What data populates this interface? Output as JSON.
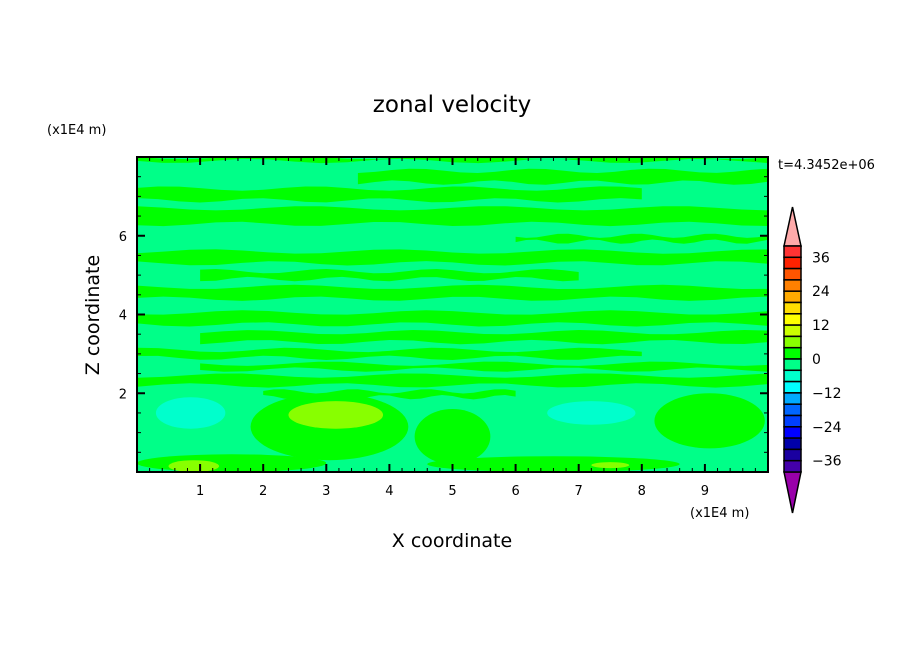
{
  "chart_data": {
    "type": "heatmap",
    "subtype": "filled-contour",
    "title": "zonal velocity",
    "xlabel": "X coordinate",
    "ylabel": "Z coordinate",
    "x_unit_label": "(x1E4 m)",
    "y_unit_label": "(x1E4 m)",
    "time_label": "t=4.3452e+06",
    "xlim": [
      0,
      10
    ],
    "ylim": [
      0,
      8
    ],
    "x_ticks": [
      "1",
      "2",
      "3",
      "4",
      "5",
      "6",
      "7",
      "8",
      "9"
    ],
    "y_ticks": [
      "2",
      "4",
      "6"
    ],
    "grid": false,
    "background_level": [
      -4,
      0
    ],
    "colorbar": {
      "levels": [
        40,
        36,
        32,
        28,
        24,
        20,
        16,
        12,
        8,
        4,
        0,
        -4,
        -8,
        -12,
        -16,
        -20,
        -24,
        -28,
        -32,
        -36,
        -40
      ],
      "tick_labels": [
        "36",
        "24",
        "12",
        "0",
        "-12",
        "-24",
        "-36"
      ],
      "colors": [
        "#ff3333",
        "#ff2200",
        "#ff5500",
        "#ff8000",
        "#ffaa00",
        "#ffdd00",
        "#ffff00",
        "#ccff00",
        "#88ff00",
        "#00ff00",
        "#00ff88",
        "#00ffcc",
        "#00ffff",
        "#00aaff",
        "#0066ff",
        "#0040ff",
        "#0000ff",
        "#0000aa",
        "#1a00a0",
        "#4400aa"
      ],
      "over_color": "#ffaaaa",
      "under_color": "#9900aa",
      "extend": "both"
    },
    "regions": [
      {
        "level": [
          0,
          4
        ],
        "x": [
          0,
          10
        ],
        "z": [
          7.9,
          8.0
        ]
      },
      {
        "level": [
          0,
          4
        ],
        "x": [
          3.5,
          10
        ],
        "z": [
          7.35,
          7.65
        ]
      },
      {
        "level": [
          0,
          4
        ],
        "x": [
          0,
          8
        ],
        "z": [
          6.9,
          7.2
        ]
      },
      {
        "level": [
          0,
          4
        ],
        "x": [
          0,
          10
        ],
        "z": [
          6.3,
          6.7
        ]
      },
      {
        "level": [
          0,
          4
        ],
        "x": [
          6,
          10
        ],
        "z": [
          5.85,
          6.0
        ]
      },
      {
        "level": [
          0,
          4
        ],
        "x": [
          0,
          10
        ],
        "z": [
          5.3,
          5.6
        ]
      },
      {
        "level": [
          0,
          4
        ],
        "x": [
          1,
          7
        ],
        "z": [
          4.9,
          5.1
        ]
      },
      {
        "level": [
          0,
          4
        ],
        "x": [
          0,
          10
        ],
        "z": [
          4.4,
          4.7
        ]
      },
      {
        "level": [
          0,
          4
        ],
        "x": [
          0,
          10
        ],
        "z": [
          3.75,
          4.05
        ]
      },
      {
        "level": [
          0,
          4
        ],
        "x": [
          1,
          10
        ],
        "z": [
          3.3,
          3.55
        ]
      },
      {
        "level": [
          0,
          4
        ],
        "x": [
          0,
          8
        ],
        "z": [
          2.9,
          3.1
        ]
      },
      {
        "level": [
          0,
          4
        ],
        "x": [
          1,
          10
        ],
        "z": [
          2.6,
          2.75
        ]
      },
      {
        "level": [
          0,
          4
        ],
        "x": [
          0,
          10
        ],
        "z": [
          2.2,
          2.45
        ]
      },
      {
        "level": [
          0,
          4
        ],
        "x": [
          2,
          6
        ],
        "z": [
          1.9,
          2.05
        ]
      },
      {
        "level": [
          0,
          4
        ],
        "x": [
          1.8,
          4.3
        ],
        "z": [
          0.3,
          2.0
        ],
        "shape": "blob"
      },
      {
        "level": [
          0,
          4
        ],
        "x": [
          8.2,
          9.95
        ],
        "z": [
          0.6,
          2.0
        ],
        "shape": "blob"
      },
      {
        "level": [
          0,
          4
        ],
        "x": [
          4.4,
          5.6
        ],
        "z": [
          0.2,
          1.6
        ],
        "shape": "blob"
      },
      {
        "level": [
          0,
          4
        ],
        "x": [
          0,
          3
        ],
        "z": [
          0,
          0.45
        ],
        "shape": "blob"
      },
      {
        "level": [
          0,
          4
        ],
        "x": [
          4.6,
          8.6
        ],
        "z": [
          0,
          0.4
        ],
        "shape": "blob"
      },
      {
        "level": [
          4,
          8
        ],
        "x": [
          2.4,
          3.9
        ],
        "z": [
          1.1,
          1.8
        ],
        "shape": "blob"
      },
      {
        "level": [
          4,
          8
        ],
        "x": [
          0.5,
          1.3
        ],
        "z": [
          0,
          0.3
        ],
        "shape": "blob"
      },
      {
        "level": [
          4,
          8
        ],
        "x": [
          7.2,
          7.8
        ],
        "z": [
          0.1,
          0.25
        ],
        "shape": "blob"
      },
      {
        "level": [
          -8,
          -4
        ],
        "x": [
          0.3,
          1.4
        ],
        "z": [
          1.1,
          1.9
        ],
        "shape": "blob"
      },
      {
        "level": [
          -8,
          -4
        ],
        "x": [
          6.5,
          7.9
        ],
        "z": [
          1.2,
          1.8
        ],
        "shape": "blob"
      }
    ]
  }
}
